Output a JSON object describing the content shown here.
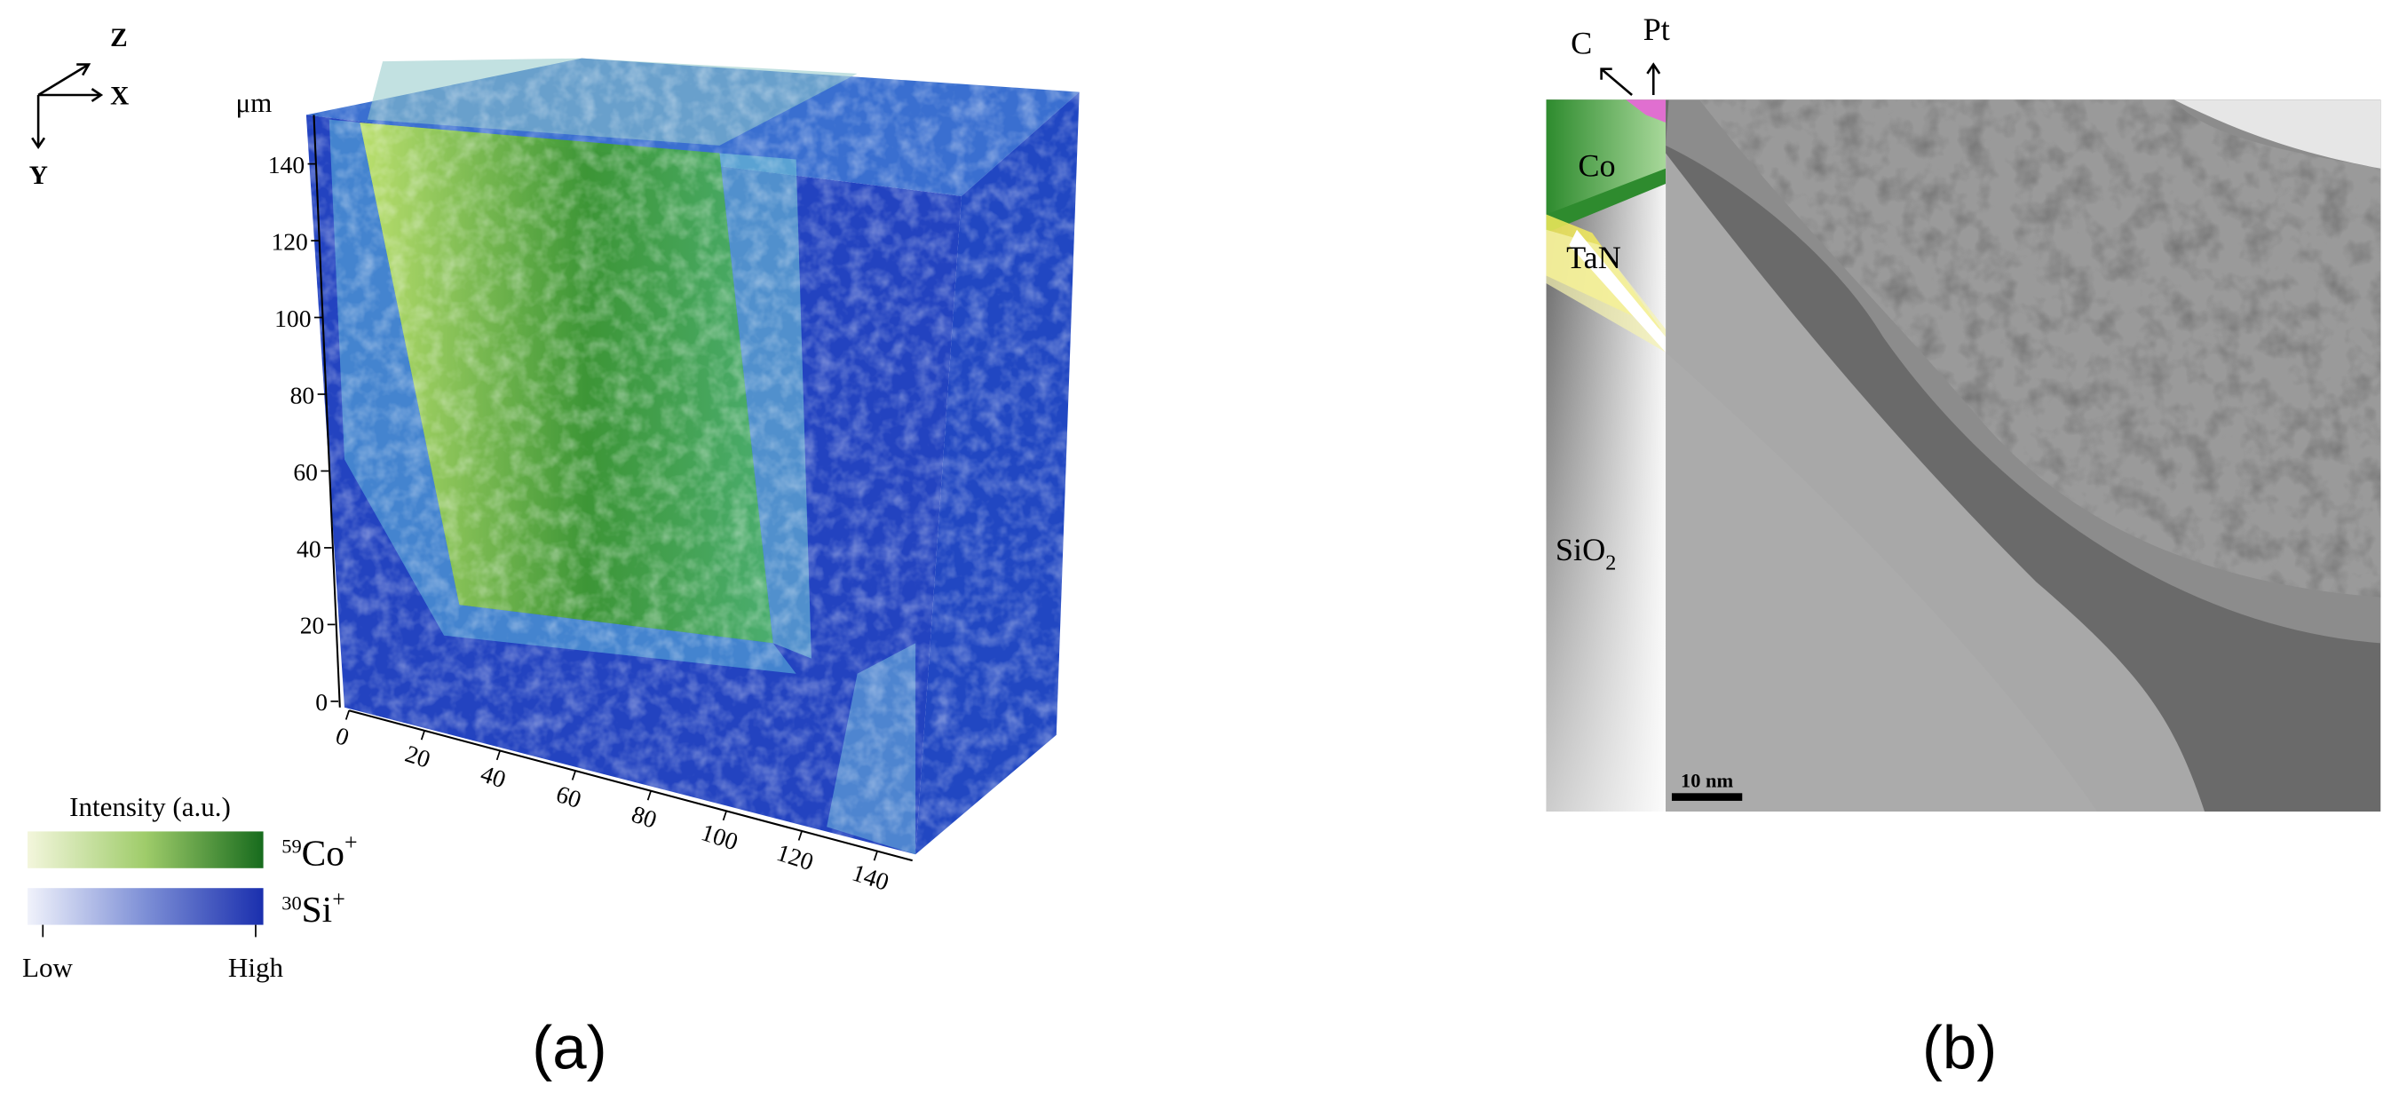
{
  "panel_a": {
    "axes_icon": {
      "z": "Z",
      "x": "X",
      "y": "Y"
    },
    "unit": "μm",
    "y_ticks": [
      0,
      20,
      40,
      60,
      80,
      100,
      120,
      140
    ],
    "x_ticks": [
      0,
      20,
      40,
      60,
      80,
      100,
      120,
      140
    ],
    "legend": {
      "title": "Intensity (a.u.)",
      "co": {
        "isotope": "59",
        "element": "Co",
        "charge": "+"
      },
      "si": {
        "isotope": "30",
        "element": "Si",
        "charge": "+"
      },
      "low": "Low",
      "high": "High"
    },
    "label": "(a)"
  },
  "panel_b": {
    "c": "C",
    "pt": "Pt",
    "co": "Co",
    "tan": "TaN",
    "sio2": {
      "text": "SiO",
      "subscript": "2"
    },
    "scale_bar": "10 nm",
    "label": "(b)"
  }
}
